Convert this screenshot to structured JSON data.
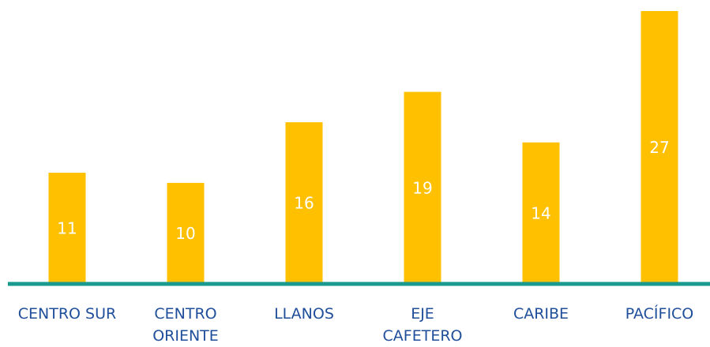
{
  "chart_data": {
    "type": "bar",
    "categories": [
      [
        "CENTRO SUR"
      ],
      [
        "CENTRO",
        "ORIENTE"
      ],
      [
        "LLANOS"
      ],
      [
        "EJE",
        "CAFETERO"
      ],
      [
        "CARIBE"
      ],
      [
        "PACÍFICO"
      ]
    ],
    "values": [
      11,
      10,
      16,
      19,
      14,
      27
    ],
    "data_labels": [
      "11",
      "10",
      "16",
      "19",
      "14",
      "27"
    ],
    "ylim": [
      0,
      27
    ],
    "grid": false,
    "legend": "none",
    "title": "",
    "xlabel": "",
    "ylabel": ""
  },
  "colors": {
    "bar": "#FFC000",
    "axis": "#1A9A8F",
    "category_text": "#1F4E9A",
    "value_text": "#FFFFFF"
  }
}
